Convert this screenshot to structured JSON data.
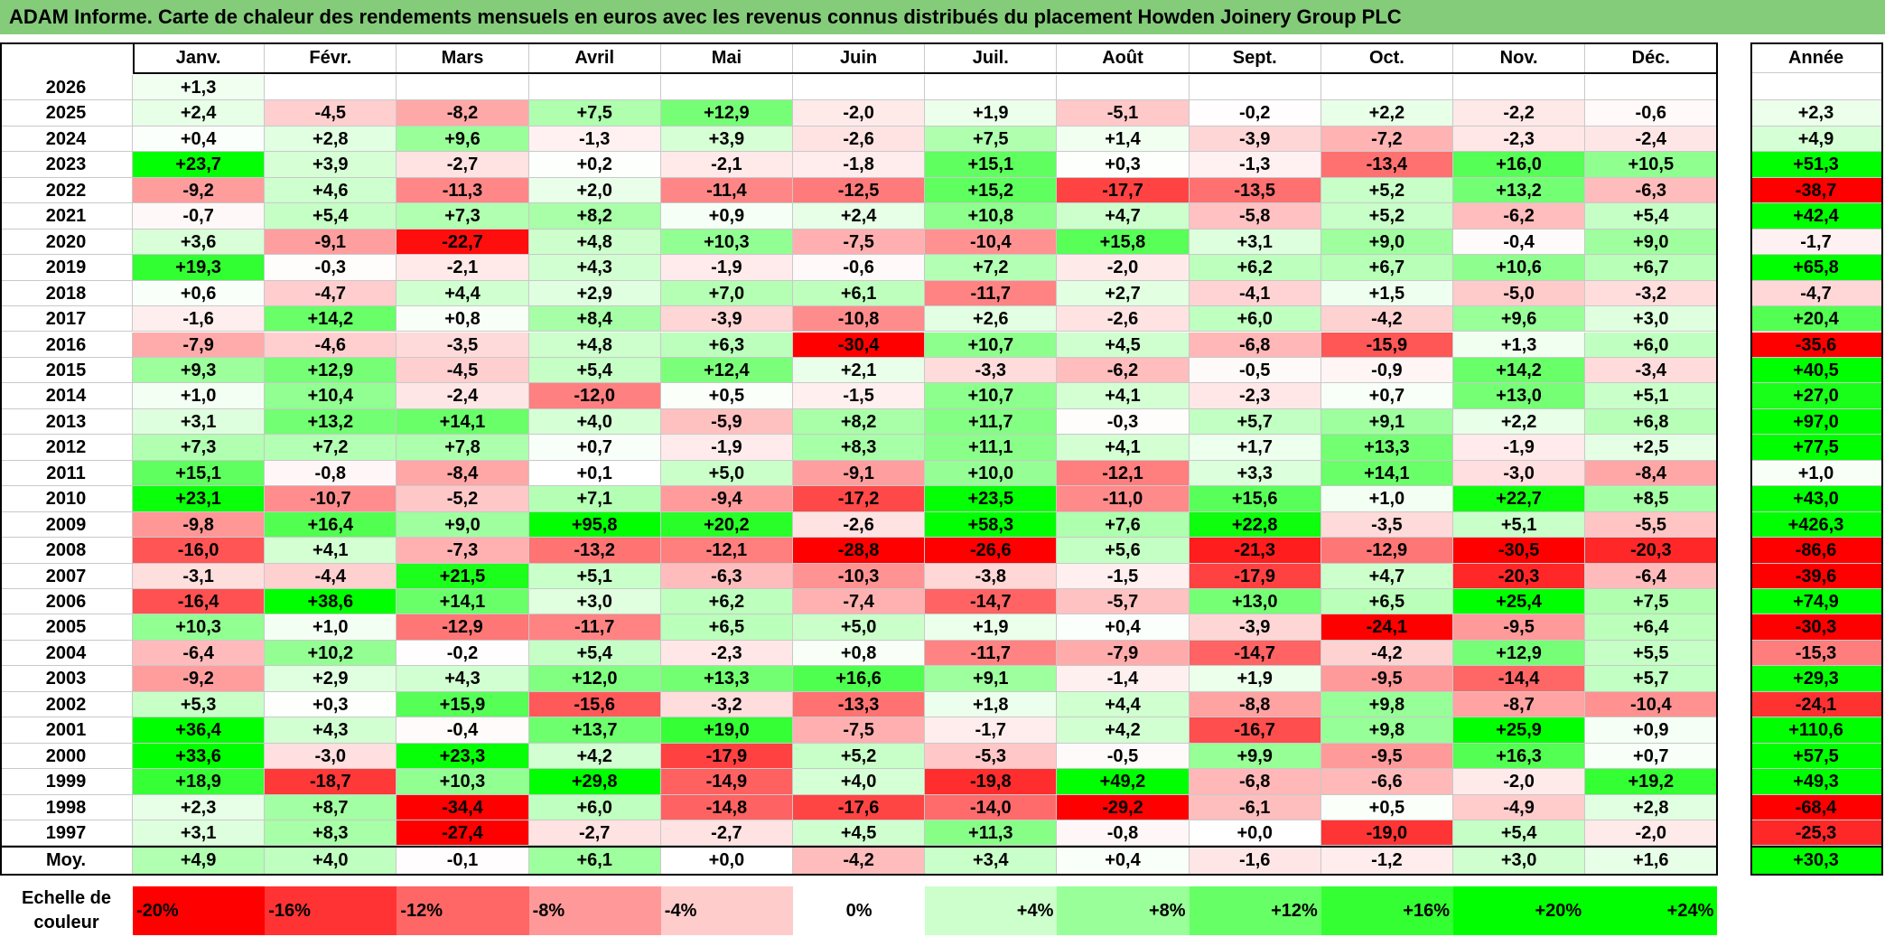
{
  "title": "ADAM Informe. Carte de chaleur des rendements mensuels en euros avec les revenus connus distribués du placement Howden Joinery Group PLC",
  "chart_data": {
    "type": "heatmap",
    "months": [
      "Janv.",
      "Févr.",
      "Mars",
      "Avril",
      "Mai",
      "Juin",
      "Juil.",
      "Août",
      "Sept.",
      "Oct.",
      "Nov.",
      "Déc."
    ],
    "year_header": "Année",
    "rows": [
      {
        "year": "2026",
        "values": [
          "+1,3",
          "",
          "",
          "",
          "",
          "",
          "",
          "",
          "",
          "",
          "",
          ""
        ],
        "annual": ""
      },
      {
        "year": "2025",
        "values": [
          "+2,4",
          "-4,5",
          "-8,2",
          "+7,5",
          "+12,9",
          "-2,0",
          "+1,9",
          "-5,1",
          "-0,2",
          "+2,2",
          "-2,2",
          "-0,6"
        ],
        "annual": "+2,3"
      },
      {
        "year": "2024",
        "values": [
          "+0,4",
          "+2,8",
          "+9,6",
          "-1,3",
          "+3,9",
          "-2,6",
          "+7,5",
          "+1,4",
          "-3,9",
          "-7,2",
          "-2,3",
          "-2,4"
        ],
        "annual": "+4,9"
      },
      {
        "year": "2023",
        "values": [
          "+23,7",
          "+3,9",
          "-2,7",
          "+0,2",
          "-2,1",
          "-1,8",
          "+15,1",
          "+0,3",
          "-1,3",
          "-13,4",
          "+16,0",
          "+10,5"
        ],
        "annual": "+51,3"
      },
      {
        "year": "2022",
        "values": [
          "-9,2",
          "+4,6",
          "-11,3",
          "+2,0",
          "-11,4",
          "-12,5",
          "+15,2",
          "-17,7",
          "-13,5",
          "+5,2",
          "+13,2",
          "-6,3"
        ],
        "annual": "-38,7"
      },
      {
        "year": "2021",
        "values": [
          "-0,7",
          "+5,4",
          "+7,3",
          "+8,2",
          "+0,9",
          "+2,4",
          "+10,8",
          "+4,7",
          "-5,8",
          "+5,2",
          "-6,2",
          "+5,4"
        ],
        "annual": "+42,4"
      },
      {
        "year": "2020",
        "values": [
          "+3,6",
          "-9,1",
          "-22,7",
          "+4,8",
          "+10,3",
          "-7,5",
          "-10,4",
          "+15,8",
          "+3,1",
          "+9,0",
          "-0,4",
          "+9,0"
        ],
        "annual": "-1,7"
      },
      {
        "year": "2019",
        "values": [
          "+19,3",
          "-0,3",
          "-2,1",
          "+4,3",
          "-1,9",
          "-0,6",
          "+7,2",
          "-2,0",
          "+6,2",
          "+6,7",
          "+10,6",
          "+6,7"
        ],
        "annual": "+65,8"
      },
      {
        "year": "2018",
        "values": [
          "+0,6",
          "-4,7",
          "+4,4",
          "+2,9",
          "+7,0",
          "+6,1",
          "-11,7",
          "+2,7",
          "-4,1",
          "+1,5",
          "-5,0",
          "-3,2"
        ],
        "annual": "-4,7"
      },
      {
        "year": "2017",
        "values": [
          "-1,6",
          "+14,2",
          "+0,8",
          "+8,4",
          "-3,9",
          "-10,8",
          "+2,6",
          "-2,6",
          "+6,0",
          "-4,2",
          "+9,6",
          "+3,0"
        ],
        "annual": "+20,4"
      },
      {
        "year": "2016",
        "values": [
          "-7,9",
          "-4,6",
          "-3,5",
          "+4,8",
          "+6,3",
          "-30,4",
          "+10,7",
          "+4,5",
          "-6,8",
          "-15,9",
          "+1,3",
          "+6,0"
        ],
        "annual": "-35,6"
      },
      {
        "year": "2015",
        "values": [
          "+9,3",
          "+12,9",
          "-4,5",
          "+5,4",
          "+12,4",
          "+2,1",
          "-3,3",
          "-6,2",
          "-0,5",
          "-0,9",
          "+14,2",
          "-3,4"
        ],
        "annual": "+40,5"
      },
      {
        "year": "2014",
        "values": [
          "+1,0",
          "+10,4",
          "-2,4",
          "-12,0",
          "+0,5",
          "-1,5",
          "+10,7",
          "+4,1",
          "-2,3",
          "+0,7",
          "+13,0",
          "+5,1"
        ],
        "annual": "+27,0"
      },
      {
        "year": "2013",
        "values": [
          "+3,1",
          "+13,2",
          "+14,1",
          "+4,0",
          "-5,9",
          "+8,2",
          "+11,7",
          "-0,3",
          "+5,7",
          "+9,1",
          "+2,2",
          "+6,8"
        ],
        "annual": "+97,0"
      },
      {
        "year": "2012",
        "values": [
          "+7,3",
          "+7,2",
          "+7,8",
          "+0,7",
          "-1,9",
          "+8,3",
          "+11,1",
          "+4,1",
          "+1,7",
          "+13,3",
          "-1,9",
          "+2,5"
        ],
        "annual": "+77,5"
      },
      {
        "year": "2011",
        "values": [
          "+15,1",
          "-0,8",
          "-8,4",
          "+0,1",
          "+5,0",
          "-9,1",
          "+10,0",
          "-12,1",
          "+3,3",
          "+14,1",
          "-3,0",
          "-8,4"
        ],
        "annual": "+1,0"
      },
      {
        "year": "2010",
        "values": [
          "+23,1",
          "-10,7",
          "-5,2",
          "+7,1",
          "-9,4",
          "-17,2",
          "+23,5",
          "-11,0",
          "+15,6",
          "+1,0",
          "+22,7",
          "+8,5"
        ],
        "annual": "+43,0"
      },
      {
        "year": "2009",
        "values": [
          "-9,8",
          "+16,4",
          "+9,0",
          "+95,8",
          "+20,2",
          "-2,6",
          "+58,3",
          "+7,6",
          "+22,8",
          "-3,5",
          "+5,1",
          "-5,5"
        ],
        "annual": "+426,3"
      },
      {
        "year": "2008",
        "values": [
          "-16,0",
          "+4,1",
          "-7,3",
          "-13,2",
          "-12,1",
          "-28,8",
          "-26,6",
          "+5,6",
          "-21,3",
          "-12,9",
          "-30,5",
          "-20,3"
        ],
        "annual": "-86,6"
      },
      {
        "year": "2007",
        "values": [
          "-3,1",
          "-4,4",
          "+21,5",
          "+5,1",
          "-6,3",
          "-10,3",
          "-3,8",
          "-1,5",
          "-17,9",
          "+4,7",
          "-20,3",
          "-6,4"
        ],
        "annual": "-39,6"
      },
      {
        "year": "2006",
        "values": [
          "-16,4",
          "+38,6",
          "+14,1",
          "+3,0",
          "+6,2",
          "-7,4",
          "-14,7",
          "-5,7",
          "+13,0",
          "+6,5",
          "+25,4",
          "+7,5"
        ],
        "annual": "+74,9"
      },
      {
        "year": "2005",
        "values": [
          "+10,3",
          "+1,0",
          "-12,9",
          "-11,7",
          "+6,5",
          "+5,0",
          "+1,9",
          "+0,4",
          "-3,9",
          "-24,1",
          "-9,5",
          "+6,4"
        ],
        "annual": "-30,3"
      },
      {
        "year": "2004",
        "values": [
          "-6,4",
          "+10,2",
          "-0,2",
          "+5,4",
          "-2,3",
          "+0,8",
          "-11,7",
          "-7,9",
          "-14,7",
          "-4,2",
          "+12,9",
          "+5,5"
        ],
        "annual": "-15,3"
      },
      {
        "year": "2003",
        "values": [
          "-9,2",
          "+2,9",
          "+4,3",
          "+12,0",
          "+13,3",
          "+16,6",
          "+9,1",
          "-1,4",
          "+1,9",
          "-9,5",
          "-14,4",
          "+5,7"
        ],
        "annual": "+29,3"
      },
      {
        "year": "2002",
        "values": [
          "+5,3",
          "+0,3",
          "+15,9",
          "-15,6",
          "-3,2",
          "-13,3",
          "+1,8",
          "+4,4",
          "-8,8",
          "+9,8",
          "-8,7",
          "-10,4"
        ],
        "annual": "-24,1"
      },
      {
        "year": "2001",
        "values": [
          "+36,4",
          "+4,3",
          "-0,4",
          "+13,7",
          "+19,0",
          "-7,5",
          "-1,7",
          "+4,2",
          "-16,7",
          "+9,8",
          "+25,9",
          "+0,9"
        ],
        "annual": "+110,6"
      },
      {
        "year": "2000",
        "values": [
          "+33,6",
          "-3,0",
          "+23,3",
          "+4,2",
          "-17,9",
          "+5,2",
          "-5,3",
          "-0,5",
          "+9,9",
          "-9,5",
          "+16,3",
          "+0,7"
        ],
        "annual": "+57,5"
      },
      {
        "year": "1999",
        "values": [
          "+18,9",
          "-18,7",
          "+10,3",
          "+29,8",
          "-14,9",
          "+4,0",
          "-19,8",
          "+49,2",
          "-6,8",
          "-6,6",
          "-2,0",
          "+19,2"
        ],
        "annual": "+49,3"
      },
      {
        "year": "1998",
        "values": [
          "+2,3",
          "+8,7",
          "-34,4",
          "+6,0",
          "-14,8",
          "-17,6",
          "-14,0",
          "-29,2",
          "-6,1",
          "+0,5",
          "-4,9",
          "+2,8"
        ],
        "annual": "-68,4"
      },
      {
        "year": "1997",
        "values": [
          "+3,1",
          "+8,3",
          "-27,4",
          "-2,7",
          "-2,7",
          "+4,5",
          "+11,3",
          "-0,8",
          "+0,0",
          "-19,0",
          "+5,4",
          "-2,0"
        ],
        "annual": "-25,3"
      }
    ],
    "average": {
      "label": "Moy.",
      "values": [
        "+4,9",
        "+4,0",
        "-0,1",
        "+6,1",
        "+0,0",
        "-4,2",
        "+3,4",
        "+0,4",
        "-1,6",
        "-1,2",
        "+3,0",
        "+1,6"
      ],
      "annual": "+30,3"
    },
    "color_scale": {
      "label": "Echelle de\ncouleur",
      "stops": [
        "-20%",
        "-16%",
        "-12%",
        "-8%",
        "-4%",
        "0%",
        "+4%",
        "+8%",
        "+12%",
        "+16%",
        "+20%",
        "+24%"
      ],
      "negative_color": "#ff0000",
      "neutral_color": "#ffffff",
      "positive_color": "#00ff00"
    }
  }
}
